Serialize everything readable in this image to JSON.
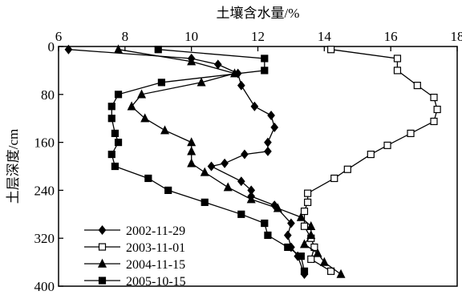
{
  "chart_data": {
    "type": "line",
    "x_axis_title": "土壤含水量/%",
    "y_axis_title": "土层深度/cm",
    "xlim": [
      6,
      18
    ],
    "ylim": [
      0,
      400
    ],
    "x_ticks": [
      "6",
      "8",
      "10",
      "12",
      "14",
      "16",
      "18"
    ],
    "y_ticks": [
      "0",
      "80",
      "160",
      "240",
      "320",
      "400"
    ],
    "x_position": "top",
    "y_inverted": true,
    "grid": false,
    "legend_position": "bottom-left",
    "series": [
      {
        "name": "2002-11-29",
        "marker": "diamond-filled",
        "points": [
          [
            6.3,
            5
          ],
          [
            10.0,
            20
          ],
          [
            10.8,
            30
          ],
          [
            11.4,
            45
          ],
          [
            11.5,
            65
          ],
          [
            11.9,
            100
          ],
          [
            12.4,
            115
          ],
          [
            12.5,
            135
          ],
          [
            12.3,
            160
          ],
          [
            12.3,
            175
          ],
          [
            11.6,
            180
          ],
          [
            11.0,
            195
          ],
          [
            10.6,
            200
          ],
          [
            11.5,
            225
          ],
          [
            11.8,
            240
          ],
          [
            11.8,
            250
          ],
          [
            12.5,
            265
          ],
          [
            13.0,
            295
          ],
          [
            12.9,
            315
          ],
          [
            13.0,
            335
          ],
          [
            13.2,
            350
          ],
          [
            13.4,
            380
          ]
        ]
      },
      {
        "name": "2003-11-01",
        "marker": "square-open",
        "points": [
          [
            14.2,
            5
          ],
          [
            16.2,
            20
          ],
          [
            16.2,
            40
          ],
          [
            16.8,
            65
          ],
          [
            17.3,
            85
          ],
          [
            17.4,
            105
          ],
          [
            17.3,
            125
          ],
          [
            16.6,
            145
          ],
          [
            15.9,
            165
          ],
          [
            15.4,
            180
          ],
          [
            14.7,
            205
          ],
          [
            14.3,
            220
          ],
          [
            13.5,
            245
          ],
          [
            13.5,
            260
          ],
          [
            13.4,
            275
          ],
          [
            13.4,
            300
          ],
          [
            13.6,
            320
          ],
          [
            13.7,
            335
          ],
          [
            13.6,
            355
          ],
          [
            14.2,
            375
          ]
        ]
      },
      {
        "name": "2004-11-15",
        "marker": "triangle-filled",
        "points": [
          [
            7.8,
            5
          ],
          [
            10.0,
            25
          ],
          [
            11.3,
            45
          ],
          [
            10.3,
            60
          ],
          [
            8.5,
            80
          ],
          [
            8.2,
            100
          ],
          [
            8.6,
            120
          ],
          [
            9.2,
            140
          ],
          [
            10.0,
            160
          ],
          [
            10.0,
            175
          ],
          [
            10.0,
            195
          ],
          [
            10.4,
            210
          ],
          [
            11.1,
            235
          ],
          [
            11.8,
            255
          ],
          [
            12.6,
            270
          ],
          [
            13.3,
            285
          ],
          [
            13.6,
            300
          ],
          [
            13.6,
            315
          ],
          [
            13.4,
            330
          ],
          [
            13.8,
            345
          ],
          [
            14.0,
            360
          ],
          [
            14.5,
            380
          ]
        ]
      },
      {
        "name": "2005-10-15",
        "marker": "square-filled",
        "points": [
          [
            9.0,
            5
          ],
          [
            12.2,
            20
          ],
          [
            12.2,
            40
          ],
          [
            9.1,
            60
          ],
          [
            7.8,
            80
          ],
          [
            7.6,
            100
          ],
          [
            7.6,
            120
          ],
          [
            7.7,
            145
          ],
          [
            7.8,
            160
          ],
          [
            7.6,
            180
          ],
          [
            7.7,
            200
          ],
          [
            8.7,
            220
          ],
          [
            9.3,
            240
          ],
          [
            10.4,
            260
          ],
          [
            11.5,
            280
          ],
          [
            12.2,
            295
          ],
          [
            12.3,
            315
          ],
          [
            12.9,
            335
          ],
          [
            13.3,
            350
          ],
          [
            13.4,
            375
          ]
        ]
      }
    ]
  }
}
